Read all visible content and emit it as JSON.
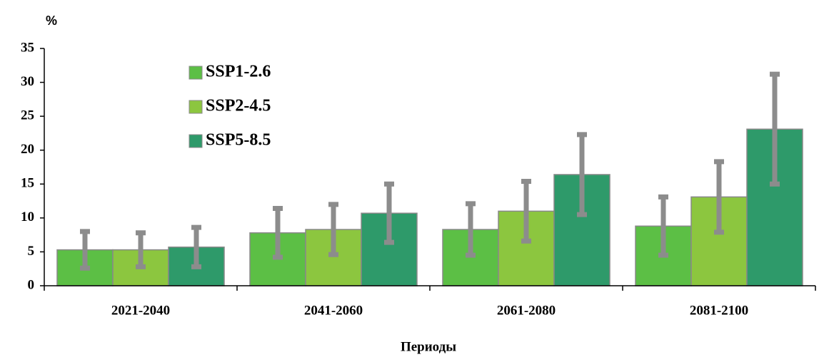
{
  "chart_data": {
    "type": "bar",
    "y_label": "%",
    "x_label": "Периоды",
    "categories": [
      "2021-2040",
      "2041-2060",
      "2061-2080",
      "2081-2100"
    ],
    "series": [
      {
        "name": "SSP1-2.6",
        "color": "#5cbf45",
        "values": [
          5.3,
          7.8,
          8.3,
          8.8
        ],
        "errors": [
          2.7,
          3.6,
          3.8,
          4.3
        ]
      },
      {
        "name": "SSP2-4.5",
        "color": "#8cc63f",
        "values": [
          5.3,
          8.3,
          11.0,
          13.1
        ],
        "errors": [
          2.5,
          3.7,
          4.4,
          5.2
        ]
      },
      {
        "name": "SSP5-8.5",
        "color": "#2e9a6a",
        "values": [
          5.7,
          10.7,
          16.4,
          23.1
        ],
        "errors": [
          2.9,
          4.3,
          5.9,
          8.1
        ]
      }
    ],
    "error_color": "#8c8c8c",
    "ylim": [
      0,
      35
    ],
    "yticks": [
      0,
      5,
      10,
      15,
      20,
      25,
      30,
      35
    ],
    "grid": false,
    "legend": "upper left"
  }
}
